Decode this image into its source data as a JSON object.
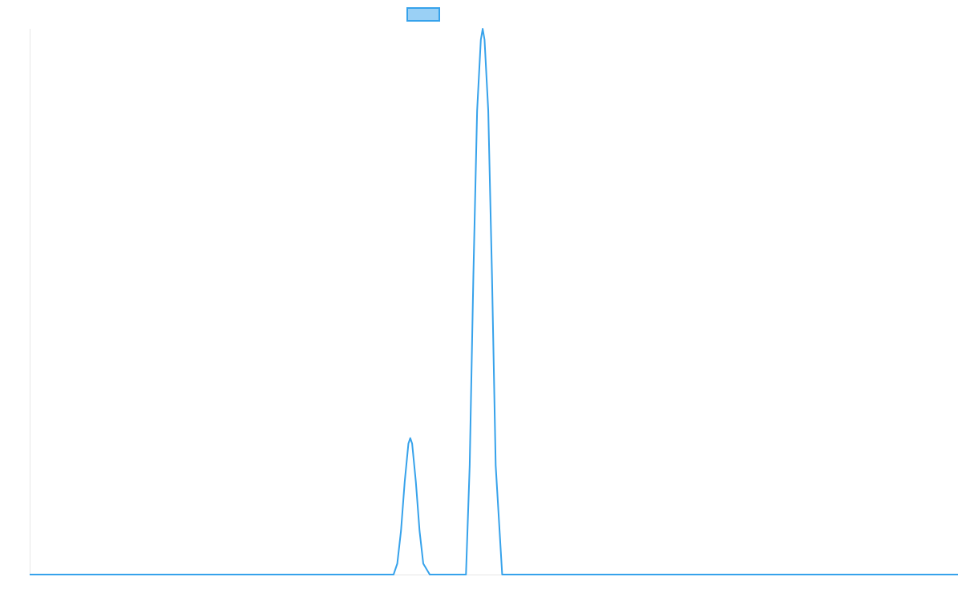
{
  "chart_data": {
    "type": "line",
    "title": "",
    "xlabel": "",
    "ylabel": "",
    "grid": false,
    "legend": "top-center",
    "xlim": [
      0,
      1000
    ],
    "ylim": [
      0,
      100
    ],
    "series": [
      {
        "color": "#36a2eb",
        "fill_color": "#9ad0f5",
        "points": [
          [
            0,
            0
          ],
          [
            50,
            0
          ],
          [
            100,
            0
          ],
          [
            150,
            0
          ],
          [
            200,
            0
          ],
          [
            250,
            0
          ],
          [
            300,
            0
          ],
          [
            350,
            0
          ],
          [
            392,
            0
          ],
          [
            396,
            2
          ],
          [
            400,
            8
          ],
          [
            404,
            17
          ],
          [
            408,
            24
          ],
          [
            410,
            25
          ],
          [
            412,
            24
          ],
          [
            416,
            17
          ],
          [
            420,
            8
          ],
          [
            424,
            2
          ],
          [
            431,
            0
          ],
          [
            470,
            0
          ],
          [
            470,
            0
          ],
          [
            474,
            20
          ],
          [
            478,
            55
          ],
          [
            482,
            85
          ],
          [
            486,
            98
          ],
          [
            488,
            100
          ],
          [
            490,
            98
          ],
          [
            494,
            85
          ],
          [
            498,
            55
          ],
          [
            502,
            20
          ],
          [
            509,
            0
          ],
          [
            550,
            0
          ],
          [
            600,
            0
          ],
          [
            650,
            0
          ],
          [
            700,
            0
          ],
          [
            750,
            0
          ],
          [
            800,
            0
          ],
          [
            850,
            0
          ],
          [
            900,
            0
          ],
          [
            950,
            0
          ],
          [
            1000,
            0
          ]
        ]
      }
    ]
  }
}
